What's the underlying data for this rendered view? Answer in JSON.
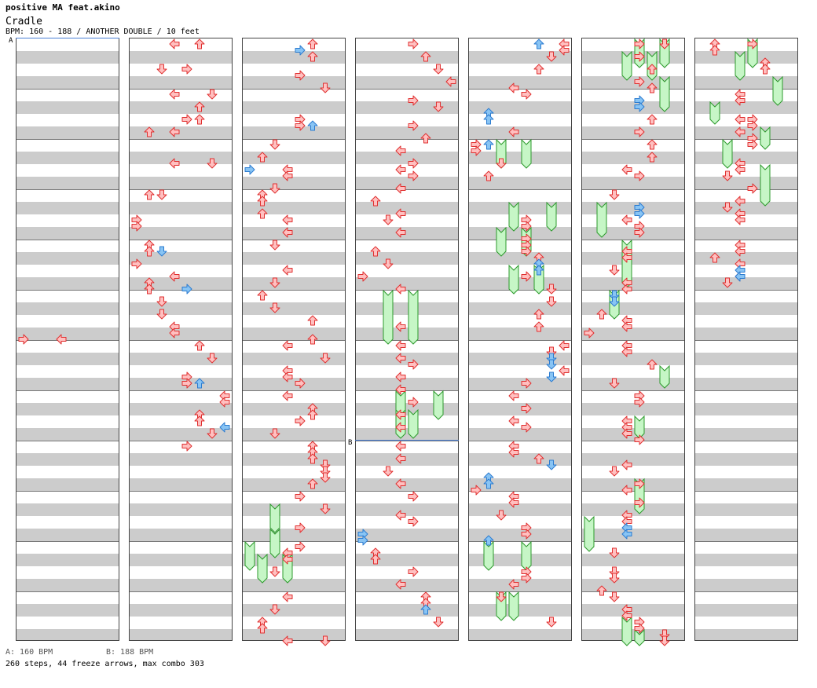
{
  "header": {
    "artist": "positive MA feat.akino",
    "title": "Cradle",
    "info": "BPM: 160 - 188 / ANOTHER DOUBLE / 10 feet"
  },
  "footer": {
    "legend_a": "A: 160 BPM",
    "legend_b": "B: 188 BPM",
    "stats": "260 steps, 44 freeze arrows, max combo 303"
  },
  "sections": [
    {
      "label": "A",
      "column": 0,
      "row": 0
    },
    {
      "label": "B",
      "column": 3,
      "row": 64
    }
  ],
  "colors": {
    "red_fill": "#ffc0c0",
    "red_stroke": "#e03030",
    "blue_fill": "#88c4f4",
    "blue_stroke": "#2c7cd0",
    "freeze_fill": "#c6f6c6",
    "freeze_stroke": "#2c9a2c"
  },
  "layout": {
    "columns": 7,
    "lanes": 8,
    "rows_per_column": 96
  },
  "notes": [
    [
      0,
      47,
      0,
      "r"
    ],
    [
      0,
      47,
      3,
      "r"
    ],
    [
      1,
      0,
      3,
      "r"
    ],
    [
      1,
      0,
      5,
      "r"
    ],
    [
      1,
      4,
      2,
      "r"
    ],
    [
      1,
      4,
      4,
      "r"
    ],
    [
      1,
      8,
      3,
      "r"
    ],
    [
      1,
      8,
      6,
      "r"
    ],
    [
      1,
      10,
      5,
      "r"
    ],
    [
      1,
      12,
      5,
      "r"
    ],
    [
      1,
      12,
      4,
      "r"
    ],
    [
      1,
      14,
      1,
      "r"
    ],
    [
      1,
      14,
      3,
      "r"
    ],
    [
      1,
      19,
      3,
      "r"
    ],
    [
      1,
      19,
      6,
      "r"
    ],
    [
      1,
      24,
      1,
      "r"
    ],
    [
      1,
      24,
      2,
      "r"
    ],
    [
      1,
      28,
      0,
      "r"
    ],
    [
      1,
      29,
      0,
      "r"
    ],
    [
      1,
      32,
      1,
      "r"
    ],
    [
      1,
      33,
      1,
      "r"
    ],
    [
      1,
      33,
      2,
      "b"
    ],
    [
      1,
      35,
      0,
      "r"
    ],
    [
      1,
      37,
      3,
      "r"
    ],
    [
      1,
      38,
      1,
      "r"
    ],
    [
      1,
      39,
      1,
      "r"
    ],
    [
      1,
      39,
      4,
      "b"
    ],
    [
      1,
      41,
      2,
      "r"
    ],
    [
      1,
      43,
      2,
      "r"
    ],
    [
      1,
      45,
      3,
      "r"
    ],
    [
      1,
      46,
      3,
      "r"
    ],
    [
      1,
      48,
      5,
      "r"
    ],
    [
      1,
      50,
      6,
      "r"
    ],
    [
      1,
      53,
      4,
      "r"
    ],
    [
      1,
      54,
      4,
      "r"
    ],
    [
      1,
      54,
      5,
      "b"
    ],
    [
      1,
      56,
      7,
      "r"
    ],
    [
      1,
      57,
      7,
      "r"
    ],
    [
      1,
      59,
      5,
      "r"
    ],
    [
      1,
      60,
      5,
      "r"
    ],
    [
      1,
      61,
      7,
      "b"
    ],
    [
      1,
      62,
      6,
      "r"
    ],
    [
      1,
      64,
      4,
      "r"
    ],
    [
      2,
      0,
      5,
      "r"
    ],
    [
      2,
      1,
      4,
      "b"
    ],
    [
      2,
      2,
      5,
      "r"
    ],
    [
      2,
      5,
      4,
      "r"
    ],
    [
      2,
      7,
      6,
      "r"
    ],
    [
      2,
      12,
      4,
      "r"
    ],
    [
      2,
      13,
      4,
      "r"
    ],
    [
      2,
      13,
      5,
      "b"
    ],
    [
      2,
      16,
      2,
      "r"
    ],
    [
      2,
      18,
      1,
      "r"
    ],
    [
      2,
      20,
      3,
      "r"
    ],
    [
      2,
      20,
      0,
      "b"
    ],
    [
      2,
      21,
      3,
      "r"
    ],
    [
      2,
      23,
      2,
      "r"
    ],
    [
      2,
      24,
      1,
      "r"
    ],
    [
      2,
      25,
      1,
      "r"
    ],
    [
      2,
      27,
      1,
      "r"
    ],
    [
      2,
      28,
      3,
      "r"
    ],
    [
      2,
      30,
      3,
      "r"
    ],
    [
      2,
      32,
      2,
      "r"
    ],
    [
      2,
      36,
      3,
      "r"
    ],
    [
      2,
      38,
      2,
      "r"
    ],
    [
      2,
      40,
      1,
      "r"
    ],
    [
      2,
      42,
      2,
      "r"
    ],
    [
      2,
      44,
      5,
      "r"
    ],
    [
      2,
      47,
      5,
      "r"
    ],
    [
      2,
      48,
      3,
      "r"
    ],
    [
      2,
      50,
      6,
      "r"
    ],
    [
      2,
      52,
      3,
      "r"
    ],
    [
      2,
      53,
      3,
      "r"
    ],
    [
      2,
      54,
      4,
      "r"
    ],
    [
      2,
      56,
      3,
      "r"
    ],
    [
      2,
      58,
      5,
      "r"
    ],
    [
      2,
      59,
      5,
      "r"
    ],
    [
      2,
      60,
      4,
      "r"
    ],
    [
      2,
      62,
      2,
      "r"
    ],
    [
      2,
      64,
      5,
      "r"
    ],
    [
      2,
      65,
      5,
      "r"
    ],
    [
      2,
      66,
      5,
      "r"
    ],
    [
      2,
      67,
      6,
      "r"
    ],
    [
      2,
      68,
      6,
      "r"
    ],
    [
      2,
      69,
      6,
      "r"
    ],
    [
      2,
      70,
      5,
      "r"
    ],
    [
      2,
      72,
      4,
      "r"
    ],
    [
      2,
      74,
      6,
      "r"
    ],
    [
      2,
      77,
      4,
      "r"
    ],
    [
      2,
      80,
      4,
      "r"
    ],
    [
      2,
      81,
      3,
      "r"
    ],
    [
      2,
      82,
      3,
      "r"
    ],
    [
      2,
      84,
      2,
      "r"
    ],
    [
      2,
      88,
      3,
      "r"
    ],
    [
      2,
      90,
      2,
      "r"
    ],
    [
      2,
      92,
      1,
      "r"
    ],
    [
      2,
      93,
      1,
      "r"
    ],
    [
      2,
      95,
      3,
      "r"
    ],
    [
      2,
      95,
      6,
      "r"
    ],
    [
      3,
      0,
      4,
      "r"
    ],
    [
      3,
      2,
      5,
      "r"
    ],
    [
      3,
      4,
      6,
      "r"
    ],
    [
      3,
      6,
      7,
      "r"
    ],
    [
      3,
      9,
      4,
      "r"
    ],
    [
      3,
      10,
      6,
      "r"
    ],
    [
      3,
      13,
      4,
      "r"
    ],
    [
      3,
      15,
      5,
      "r"
    ],
    [
      3,
      17,
      3,
      "r"
    ],
    [
      3,
      19,
      4,
      "r"
    ],
    [
      3,
      20,
      3,
      "r"
    ],
    [
      3,
      21,
      4,
      "r"
    ],
    [
      3,
      23,
      3,
      "r"
    ],
    [
      3,
      25,
      1,
      "r"
    ],
    [
      3,
      27,
      3,
      "r"
    ],
    [
      3,
      28,
      2,
      "r"
    ],
    [
      3,
      30,
      3,
      "r"
    ],
    [
      3,
      33,
      1,
      "r"
    ],
    [
      3,
      35,
      2,
      "r"
    ],
    [
      3,
      37,
      0,
      "r"
    ],
    [
      3,
      39,
      3,
      "r"
    ],
    [
      3,
      45,
      3,
      "r"
    ],
    [
      3,
      48,
      3,
      "r"
    ],
    [
      3,
      50,
      3,
      "r"
    ],
    [
      3,
      51,
      4,
      "r"
    ],
    [
      3,
      53,
      3,
      "r"
    ],
    [
      3,
      55,
      3,
      "r"
    ],
    [
      3,
      57,
      4,
      "r"
    ],
    [
      3,
      59,
      3,
      "r"
    ],
    [
      3,
      61,
      3,
      "r"
    ],
    [
      3,
      64,
      3,
      "r"
    ],
    [
      3,
      66,
      3,
      "r"
    ],
    [
      3,
      68,
      2,
      "r"
    ],
    [
      3,
      70,
      3,
      "r"
    ],
    [
      3,
      72,
      4,
      "r"
    ],
    [
      3,
      75,
      3,
      "r"
    ],
    [
      3,
      76,
      4,
      "r"
    ],
    [
      3,
      78,
      0,
      "b"
    ],
    [
      3,
      79,
      0,
      "b"
    ],
    [
      3,
      81,
      1,
      "r"
    ],
    [
      3,
      82,
      1,
      "r"
    ],
    [
      3,
      84,
      4,
      "r"
    ],
    [
      3,
      86,
      3,
      "r"
    ],
    [
      3,
      88,
      5,
      "r"
    ],
    [
      3,
      89,
      5,
      "r"
    ],
    [
      3,
      90,
      5,
      "b"
    ],
    [
      3,
      92,
      6,
      "r"
    ],
    [
      4,
      0,
      7,
      "r"
    ],
    [
      4,
      0,
      5,
      "b"
    ],
    [
      4,
      1,
      7,
      "r"
    ],
    [
      4,
      2,
      6,
      "r"
    ],
    [
      4,
      4,
      5,
      "r"
    ],
    [
      4,
      7,
      3,
      "r"
    ],
    [
      4,
      8,
      4,
      "r"
    ],
    [
      4,
      11,
      1,
      "b"
    ],
    [
      4,
      12,
      1,
      "b"
    ],
    [
      4,
      14,
      3,
      "r"
    ],
    [
      4,
      16,
      0,
      "r"
    ],
    [
      4,
      16,
      1,
      "b"
    ],
    [
      4,
      17,
      0,
      "r"
    ],
    [
      4,
      19,
      2,
      "r"
    ],
    [
      4,
      21,
      1,
      "r"
    ],
    [
      4,
      28,
      4,
      "r"
    ],
    [
      4,
      29,
      4,
      "r"
    ],
    [
      4,
      31,
      4,
      "r"
    ],
    [
      4,
      32,
      4,
      "r"
    ],
    [
      4,
      33,
      4,
      "r"
    ],
    [
      4,
      34,
      5,
      "r"
    ],
    [
      4,
      35,
      5,
      "b"
    ],
    [
      4,
      36,
      5,
      "b"
    ],
    [
      4,
      37,
      4,
      "r"
    ],
    [
      4,
      39,
      6,
      "r"
    ],
    [
      4,
      41,
      6,
      "r"
    ],
    [
      4,
      43,
      5,
      "r"
    ],
    [
      4,
      45,
      5,
      "r"
    ],
    [
      4,
      48,
      7,
      "r"
    ],
    [
      4,
      49,
      6,
      "r"
    ],
    [
      4,
      50,
      6,
      "b"
    ],
    [
      4,
      51,
      6,
      "b"
    ],
    [
      4,
      52,
      7,
      "r"
    ],
    [
      4,
      53,
      6,
      "b"
    ],
    [
      4,
      54,
      4,
      "r"
    ],
    [
      4,
      56,
      3,
      "r"
    ],
    [
      4,
      58,
      4,
      "r"
    ],
    [
      4,
      60,
      3,
      "r"
    ],
    [
      4,
      61,
      4,
      "r"
    ],
    [
      4,
      64,
      3,
      "r"
    ],
    [
      4,
      65,
      3,
      "r"
    ],
    [
      4,
      66,
      5,
      "r"
    ],
    [
      4,
      67,
      6,
      "b"
    ],
    [
      4,
      69,
      1,
      "b"
    ],
    [
      4,
      70,
      1,
      "b"
    ],
    [
      4,
      71,
      0,
      "r"
    ],
    [
      4,
      72,
      3,
      "r"
    ],
    [
      4,
      73,
      3,
      "r"
    ],
    [
      4,
      75,
      2,
      "r"
    ],
    [
      4,
      77,
      4,
      "r"
    ],
    [
      4,
      78,
      4,
      "r"
    ],
    [
      4,
      79,
      1,
      "b"
    ],
    [
      4,
      84,
      4,
      "r"
    ],
    [
      4,
      85,
      4,
      "r"
    ],
    [
      4,
      86,
      3,
      "r"
    ],
    [
      4,
      88,
      2,
      "r"
    ],
    [
      4,
      92,
      6,
      "r"
    ],
    [
      5,
      2,
      4,
      "r"
    ],
    [
      5,
      4,
      5,
      "r"
    ],
    [
      5,
      6,
      4,
      "r"
    ],
    [
      5,
      7,
      5,
      "r"
    ],
    [
      5,
      9,
      4,
      "b"
    ],
    [
      5,
      10,
      4,
      "b"
    ],
    [
      5,
      12,
      5,
      "r"
    ],
    [
      5,
      14,
      4,
      "r"
    ],
    [
      5,
      16,
      5,
      "r"
    ],
    [
      5,
      18,
      5,
      "r"
    ],
    [
      5,
      20,
      3,
      "r"
    ],
    [
      5,
      21,
      4,
      "r"
    ],
    [
      5,
      24,
      2,
      "r"
    ],
    [
      5,
      26,
      4,
      "b"
    ],
    [
      5,
      27,
      4,
      "b"
    ],
    [
      5,
      28,
      3,
      "r"
    ],
    [
      5,
      29,
      4,
      "r"
    ],
    [
      5,
      30,
      4,
      "r"
    ],
    [
      5,
      33,
      3,
      "r"
    ],
    [
      5,
      34,
      3,
      "r"
    ],
    [
      5,
      36,
      2,
      "r"
    ],
    [
      5,
      38,
      3,
      "r"
    ],
    [
      5,
      39,
      3,
      "r"
    ],
    [
      5,
      40,
      2,
      "b"
    ],
    [
      5,
      41,
      2,
      "b"
    ],
    [
      5,
      43,
      1,
      "r"
    ],
    [
      5,
      44,
      3,
      "r"
    ],
    [
      5,
      45,
      3,
      "r"
    ],
    [
      5,
      46,
      0,
      "r"
    ],
    [
      5,
      48,
      3,
      "r"
    ],
    [
      5,
      49,
      3,
      "r"
    ],
    [
      5,
      51,
      5,
      "r"
    ],
    [
      5,
      54,
      2,
      "r"
    ],
    [
      5,
      56,
      4,
      "r"
    ],
    [
      5,
      57,
      4,
      "r"
    ],
    [
      5,
      60,
      3,
      "r"
    ],
    [
      5,
      61,
      3,
      "r"
    ],
    [
      5,
      62,
      3,
      "r"
    ],
    [
      5,
      63,
      4,
      "r"
    ],
    [
      5,
      67,
      3,
      "r"
    ],
    [
      5,
      68,
      2,
      "r"
    ],
    [
      5,
      70,
      4,
      "r"
    ],
    [
      5,
      71,
      3,
      "r"
    ],
    [
      5,
      73,
      4,
      "r"
    ],
    [
      5,
      75,
      3,
      "r"
    ],
    [
      5,
      76,
      3,
      "r"
    ],
    [
      5,
      77,
      3,
      "b"
    ],
    [
      5,
      78,
      3,
      "b"
    ],
    [
      5,
      81,
      2,
      "r"
    ],
    [
      5,
      84,
      2,
      "r"
    ],
    [
      5,
      85,
      2,
      "r"
    ],
    [
      5,
      87,
      1,
      "r"
    ],
    [
      5,
      88,
      2,
      "r"
    ],
    [
      5,
      90,
      3,
      "r"
    ],
    [
      5,
      91,
      3,
      "r"
    ],
    [
      5,
      92,
      4,
      "r"
    ],
    [
      5,
      93,
      4,
      "r"
    ],
    [
      5,
      94,
      6,
      "r"
    ],
    [
      5,
      95,
      6,
      "r"
    ],
    [
      5,
      0,
      6,
      "r"
    ],
    [
      5,
      0,
      4,
      "r"
    ],
    [
      6,
      0,
      1,
      "r"
    ],
    [
      6,
      0,
      4,
      "r"
    ],
    [
      6,
      1,
      1,
      "r"
    ],
    [
      6,
      3,
      5,
      "r"
    ],
    [
      6,
      4,
      5,
      "r"
    ],
    [
      6,
      8,
      3,
      "r"
    ],
    [
      6,
      9,
      3,
      "r"
    ],
    [
      6,
      12,
      3,
      "r"
    ],
    [
      6,
      12,
      4,
      "r"
    ],
    [
      6,
      13,
      4,
      "r"
    ],
    [
      6,
      14,
      3,
      "r"
    ],
    [
      6,
      15,
      4,
      "r"
    ],
    [
      6,
      16,
      4,
      "r"
    ],
    [
      6,
      19,
      3,
      "r"
    ],
    [
      6,
      20,
      3,
      "r"
    ],
    [
      6,
      21,
      2,
      "r"
    ],
    [
      6,
      23,
      4,
      "r"
    ],
    [
      6,
      25,
      3,
      "r"
    ],
    [
      6,
      26,
      2,
      "r"
    ],
    [
      6,
      27,
      3,
      "r"
    ],
    [
      6,
      28,
      3,
      "r"
    ],
    [
      6,
      32,
      3,
      "r"
    ],
    [
      6,
      33,
      3,
      "r"
    ],
    [
      6,
      34,
      1,
      "r"
    ],
    [
      6,
      35,
      3,
      "r"
    ],
    [
      6,
      37,
      3,
      "r"
    ],
    [
      6,
      36,
      3,
      "b"
    ],
    [
      6,
      37,
      3,
      "b"
    ],
    [
      6,
      38,
      2,
      "r"
    ]
  ],
  "freezes": [
    [
      4,
      16,
      2,
      19
    ],
    [
      4,
      16,
      4,
      19
    ],
    [
      4,
      26,
      3,
      29
    ],
    [
      4,
      26,
      6,
      29
    ],
    [
      4,
      30,
      2,
      33
    ],
    [
      4,
      30,
      4,
      33
    ],
    [
      4,
      36,
      3,
      39
    ],
    [
      4,
      36,
      5,
      39
    ],
    [
      3,
      40,
      2,
      47
    ],
    [
      3,
      40,
      4,
      47
    ],
    [
      3,
      56,
      3,
      59
    ],
    [
      3,
      56,
      6,
      59
    ],
    [
      3,
      59,
      3,
      62
    ],
    [
      3,
      59,
      4,
      62
    ],
    [
      5,
      0,
      4,
      3
    ],
    [
      5,
      0,
      6,
      3
    ],
    [
      5,
      2,
      3,
      5
    ],
    [
      5,
      2,
      5,
      5
    ],
    [
      5,
      6,
      6,
      10
    ],
    [
      5,
      26,
      1,
      30
    ],
    [
      5,
      32,
      3,
      38
    ],
    [
      5,
      40,
      2,
      43
    ],
    [
      5,
      52,
      6,
      54
    ],
    [
      5,
      60,
      4,
      62
    ],
    [
      5,
      70,
      4,
      74
    ],
    [
      5,
      76,
      0,
      80
    ],
    [
      5,
      92,
      3,
      95
    ],
    [
      5,
      94,
      4,
      97
    ],
    [
      6,
      0,
      4,
      3
    ],
    [
      6,
      2,
      3,
      5
    ],
    [
      6,
      6,
      6,
      9
    ],
    [
      6,
      10,
      1,
      12
    ],
    [
      6,
      14,
      5,
      16
    ],
    [
      6,
      16,
      2,
      19
    ],
    [
      6,
      20,
      5,
      25
    ],
    [
      2,
      74,
      2,
      77
    ],
    [
      2,
      78,
      2,
      81
    ],
    [
      2,
      80,
      0,
      83
    ],
    [
      2,
      82,
      1,
      85
    ],
    [
      2,
      82,
      3,
      85
    ],
    [
      4,
      80,
      1,
      83
    ],
    [
      4,
      80,
      4,
      83
    ],
    [
      4,
      88,
      2,
      91
    ],
    [
      4,
      88,
      3,
      91
    ]
  ]
}
